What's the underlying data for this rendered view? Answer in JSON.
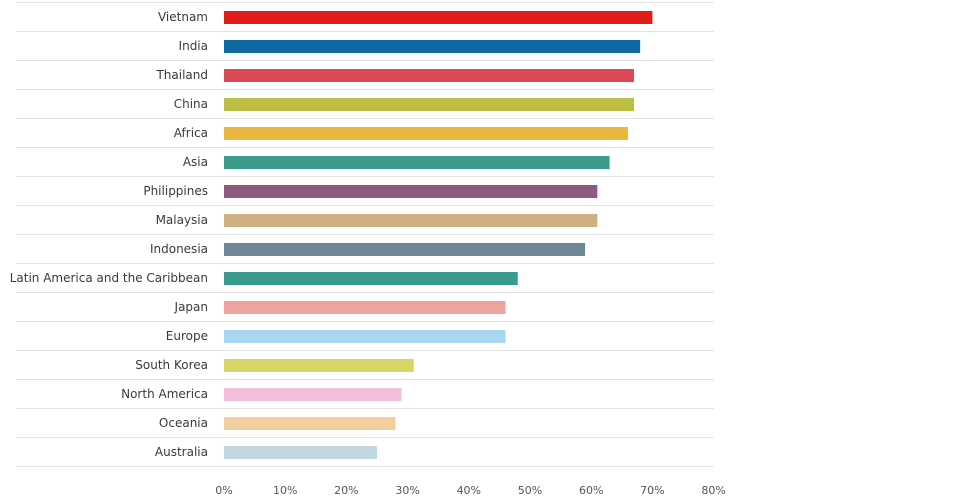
{
  "chart_data": {
    "type": "bar",
    "orientation": "horizontal",
    "title": "",
    "xlabel": "",
    "ylabel": "",
    "xlim": [
      0,
      80
    ],
    "x_ticks": [
      0,
      10,
      20,
      30,
      40,
      50,
      60,
      70,
      80
    ],
    "x_tick_labels": [
      "0%",
      "10%",
      "20%",
      "30%",
      "40%",
      "50%",
      "60%",
      "70%",
      "80%"
    ],
    "grid": "horizontal separators between rows",
    "categories": [
      "Vietnam",
      "India",
      "Thailand",
      "China",
      "Africa",
      "Asia",
      "Philippines",
      "Malaysia",
      "Indonesia",
      "Latin America and the Caribbean",
      "Japan",
      "Europe",
      "South Korea",
      "North America",
      "Oceania",
      "Australia"
    ],
    "values": [
      70,
      68,
      67,
      67,
      66,
      63,
      61,
      61,
      59,
      48,
      46,
      46,
      31,
      29,
      28,
      25
    ],
    "colors": [
      "#e21b1b",
      "#0f6aa3",
      "#d94a55",
      "#bcbe45",
      "#e8b641",
      "#3b9a8a",
      "#8e5a7d",
      "#cfae82",
      "#6f8695",
      "#3a9a8b",
      "#efa3a1",
      "#a9d7f2",
      "#d6d666",
      "#f2bedb",
      "#f2cf9c",
      "#c3d7e2"
    ]
  }
}
